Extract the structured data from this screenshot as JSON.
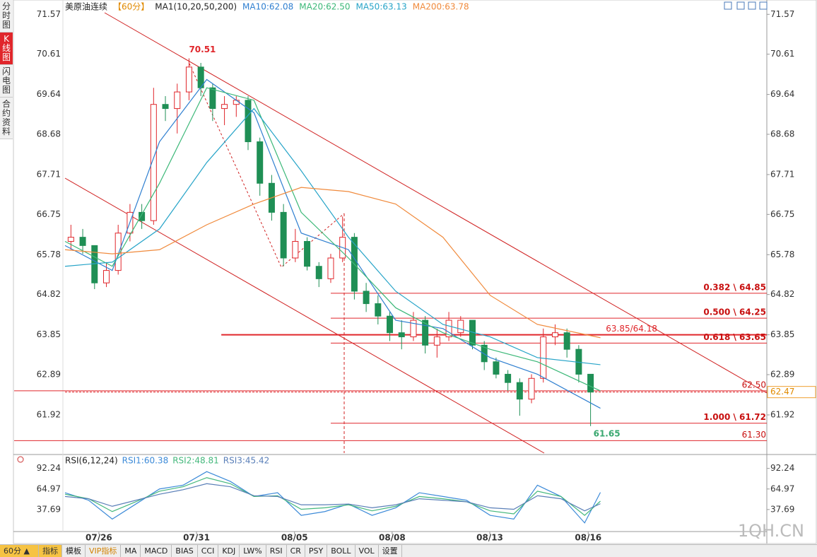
{
  "sidebar": {
    "tabs": [
      "分时图",
      "K线图",
      "闪电图",
      "合约资料"
    ]
  },
  "toolbar": {
    "period": "60分 ▲",
    "tabs": [
      "指标",
      "模板",
      "VIP指标",
      "MA",
      "MACD",
      "BIAS",
      "CCI",
      "KDJ",
      "LW%",
      "RSI",
      "CR",
      "PSY",
      "BOLL",
      "VOL",
      "设置"
    ]
  },
  "watermark": "1QH.CN",
  "chart_data": [
    {
      "type": "candlestick",
      "title": "美原油连续",
      "period": "【60分】",
      "subtitle": "MA1(10,20,50,200)",
      "xlim": [
        0,
        136
      ],
      "xticks": [
        {
          "value": 8.6,
          "label": "07/26"
        },
        {
          "value": 33.4,
          "label": "07/31"
        },
        {
          "value": 58.3,
          "label": "08/05"
        },
        {
          "value": 83.1,
          "label": "08/08"
        },
        {
          "value": 107.9,
          "label": "08/13"
        },
        {
          "value": 132.9,
          "label": "08/16"
        }
      ],
      "ylim": [
        61.0,
        71.83
      ],
      "yticks": [
        71.57,
        70.61,
        69.64,
        68.68,
        67.71,
        66.75,
        65.78,
        64.82,
        63.85,
        62.89,
        61.92
      ],
      "up_color": "#e0262b",
      "down_color": "#1f8f55",
      "candles": {
        "x": [
          1.5,
          4.5,
          7.5,
          10.5,
          13.5,
          16.5,
          19.5,
          22.5,
          25.5,
          28.5,
          31.5,
          34.5,
          37.5,
          40.5,
          43.5,
          46.5,
          49.5,
          52.5,
          55.5,
          58.5,
          61.5,
          64.5,
          67.5,
          70.5,
          73.5,
          76.5,
          79.5,
          82.5,
          85.5,
          88.5,
          91.5,
          94.5,
          97.5,
          100.5,
          103.5,
          106.5,
          109.5,
          112.5,
          115.5,
          118.5,
          121.5,
          124.5,
          127.5,
          130.5,
          133.5
        ],
        "open": [
          66.1,
          66.2,
          66.0,
          65.1,
          65.4,
          66.3,
          66.8,
          66.6,
          69.4,
          69.3,
          69.7,
          70.3,
          69.8,
          69.3,
          69.4,
          69.5,
          68.5,
          67.5,
          66.8,
          65.7,
          66.1,
          65.5,
          65.2,
          65.7,
          66.2,
          64.9,
          64.6,
          64.3,
          63.9,
          63.8,
          64.2,
          63.6,
          63.8,
          63.9,
          64.2,
          63.6,
          63.2,
          62.9,
          62.7,
          62.3,
          62.8,
          63.8,
          63.9,
          63.5,
          62.9
        ],
        "high": [
          66.5,
          66.4,
          66.0,
          65.6,
          66.5,
          67.0,
          67.0,
          69.8,
          69.6,
          69.9,
          70.51,
          70.4,
          69.9,
          69.6,
          69.6,
          69.6,
          68.6,
          67.7,
          67.0,
          66.4,
          66.2,
          65.6,
          65.8,
          66.7,
          66.3,
          65.1,
          64.8,
          64.4,
          64.2,
          64.4,
          64.3,
          64.0,
          64.4,
          64.3,
          64.2,
          63.7,
          63.3,
          63.0,
          62.8,
          62.9,
          64.0,
          64.1,
          64.0,
          63.6,
          62.9
        ],
        "low": [
          65.9,
          65.8,
          64.95,
          65.0,
          65.3,
          66.1,
          66.4,
          66.5,
          69.0,
          68.7,
          69.5,
          69.6,
          69.0,
          68.9,
          69.1,
          68.3,
          67.2,
          66.6,
          65.5,
          65.6,
          65.4,
          65.0,
          65.1,
          65.6,
          64.7,
          64.4,
          64.1,
          63.7,
          63.5,
          63.7,
          63.4,
          63.3,
          63.7,
          63.8,
          63.5,
          63.0,
          62.8,
          62.5,
          61.9,
          62.2,
          62.7,
          63.6,
          63.3,
          62.7,
          61.65
        ],
        "close": [
          66.2,
          66.0,
          65.1,
          65.4,
          66.3,
          66.8,
          66.6,
          69.4,
          69.3,
          69.7,
          70.3,
          69.8,
          69.3,
          69.4,
          69.5,
          68.5,
          67.5,
          66.8,
          65.7,
          66.1,
          65.5,
          65.2,
          65.7,
          66.2,
          64.9,
          64.6,
          64.3,
          63.9,
          63.8,
          64.2,
          63.6,
          63.8,
          64.2,
          64.2,
          63.6,
          63.2,
          62.9,
          62.7,
          62.3,
          62.8,
          63.8,
          63.9,
          63.5,
          62.9,
          62.47
        ]
      },
      "lines_x": [
        0,
        12,
        24,
        36,
        48,
        60,
        72,
        84,
        96,
        108,
        120,
        136
      ],
      "series": [
        {
          "name": "MA10:62.08",
          "color": "#2f7fd0",
          "values": [
            66.0,
            65.4,
            68.5,
            70.0,
            69.2,
            66.3,
            65.9,
            64.2,
            64.0,
            63.3,
            62.9,
            62.08
          ]
        },
        {
          "name": "MA20:62.50",
          "color": "#3cb878",
          "values": [
            66.1,
            65.5,
            67.5,
            69.8,
            69.5,
            66.8,
            65.7,
            64.5,
            63.9,
            63.5,
            63.2,
            62.5
          ]
        },
        {
          "name": "MA50:63.13",
          "color": "#27a4c8",
          "values": [
            65.5,
            65.6,
            66.4,
            68.0,
            69.3,
            67.8,
            66.2,
            64.9,
            64.1,
            63.8,
            63.3,
            63.13
          ]
        },
        {
          "name": "MA200:63.78",
          "color": "#f08a3c",
          "values": [
            65.9,
            65.8,
            65.9,
            66.5,
            67.0,
            67.4,
            67.3,
            67.0,
            66.2,
            64.8,
            64.1,
            63.78
          ]
        }
      ],
      "levels": [
        {
          "value": 64.85,
          "label": "0.382 \\ 64.85",
          "x_start": 67.5
        },
        {
          "value": 64.25,
          "label": "0.500 \\ 64.25",
          "x_start": 67.5
        },
        {
          "value": 63.85,
          "label": "63.85/64.18",
          "x_start": 39.7,
          "style": "thick"
        },
        {
          "value": 63.65,
          "label": "0.618 \\ 63.65",
          "x_start": 67.5
        },
        {
          "value": 62.5,
          "label": "62.50",
          "x_start": 0
        },
        {
          "value": 61.72,
          "label": "1.000 \\ 61.72",
          "x_start": 67.5
        },
        {
          "value": 61.3,
          "label": "61.30",
          "x_start": 0
        }
      ],
      "current": {
        "value": 62.47
      },
      "annotations": [
        {
          "x": 31.5,
          "value": 70.51,
          "color": "#e0262b"
        },
        {
          "x": 133.5,
          "value": 61.65,
          "color": "#3aa870"
        }
      ]
    },
    {
      "type": "line",
      "title": "RSI(6,12,24)",
      "ylim": [
        8.5,
        106
      ],
      "yticks": [
        92.24,
        64.97,
        37.69
      ],
      "x": [
        0,
        6,
        12,
        18,
        24,
        30,
        36,
        42,
        48,
        54,
        60,
        66,
        72,
        78,
        84,
        90,
        96,
        102,
        108,
        114,
        120,
        126,
        132,
        136
      ],
      "series": [
        {
          "name": "RSI1:60.38",
          "color": "#3c8ad8",
          "values": [
            60,
            50,
            25,
            45,
            65,
            70,
            88,
            75,
            55,
            60,
            30,
            35,
            45,
            30,
            40,
            60,
            55,
            50,
            30,
            25,
            70,
            55,
            20,
            60.38
          ]
        },
        {
          "name": "RSI2:48.81",
          "color": "#44b87c",
          "values": [
            58,
            52,
            35,
            48,
            62,
            68,
            80,
            72,
            55,
            56,
            38,
            40,
            44,
            36,
            42,
            55,
            52,
            48,
            36,
            32,
            62,
            55,
            30,
            48.81
          ]
        },
        {
          "name": "RSI3:45.42",
          "color": "#5a7fb8",
          "values": [
            55,
            52,
            42,
            50,
            58,
            64,
            72,
            68,
            56,
            55,
            44,
            44,
            45,
            40,
            44,
            52,
            50,
            48,
            40,
            38,
            56,
            52,
            36,
            45.42
          ]
        }
      ]
    }
  ]
}
